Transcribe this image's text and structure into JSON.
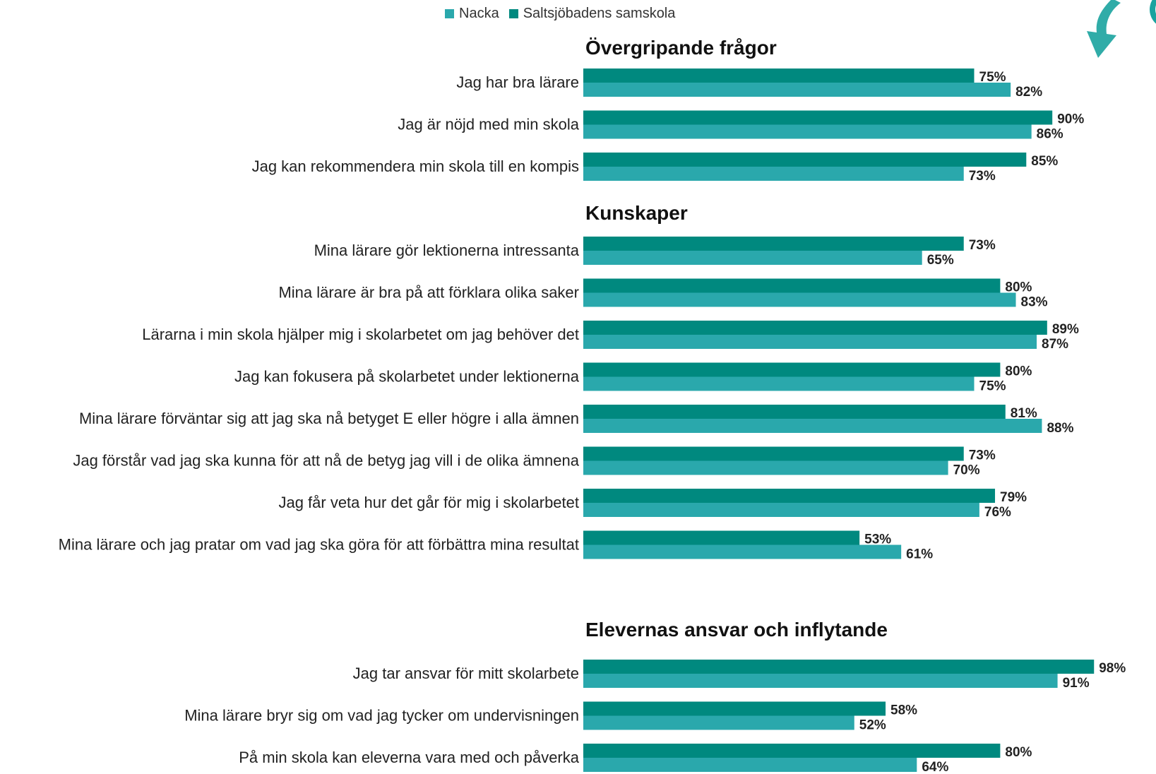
{
  "legend": {
    "items": [
      {
        "label": "Nacka",
        "color": "#2aa8ac"
      },
      {
        "label": "Saltsjöbadens samskola",
        "color": "#00897f"
      }
    ]
  },
  "decor": {
    "arrow_icon": "down-curved-arrow-icon",
    "arrow_color": "#1aa39f"
  },
  "chart_data": {
    "type": "bar",
    "orientation": "horizontal",
    "value_unit": "%",
    "xlim": [
      0,
      100
    ],
    "grid": false,
    "legend_position": "top",
    "series_names": [
      "Nacka",
      "Saltsjöbadens samskola"
    ],
    "groups": [
      {
        "title": "Övergripande frågor",
        "rows": [
          {
            "label": "Jag har bra lärare",
            "skola": 75,
            "nacka": 82
          },
          {
            "label": "Jag är nöjd med min skola",
            "skola": 90,
            "nacka": 86
          },
          {
            "label": "Jag kan rekommendera min skola till en kompis",
            "skola": 85,
            "nacka": 73
          }
        ]
      },
      {
        "title": "Kunskaper",
        "rows": [
          {
            "label": "Mina lärare gör lektionerna intressanta",
            "skola": 73,
            "nacka": 65
          },
          {
            "label": "Mina lärare är bra på att förklara olika saker",
            "skola": 80,
            "nacka": 83
          },
          {
            "label": "Lärarna i min skola hjälper mig i skolarbetet om jag behöver det",
            "skola": 89,
            "nacka": 87
          },
          {
            "label": "Jag kan fokusera på skolarbetet under lektionerna",
            "skola": 80,
            "nacka": 75
          },
          {
            "label": "Mina lärare förväntar sig att jag ska nå betyget E eller högre i alla ämnen",
            "skola": 81,
            "nacka": 88
          },
          {
            "label": "Jag förstår vad jag ska kunna för att nå de betyg jag vill i de olika ämnena",
            "skola": 73,
            "nacka": 70
          },
          {
            "label": "Jag får veta hur det går för mig i skolarbetet",
            "skola": 79,
            "nacka": 76
          },
          {
            "label": "Mina lärare och jag pratar om vad jag ska göra för att förbättra mina resultat",
            "skola": 53,
            "nacka": 61
          }
        ]
      },
      {
        "title": "Elevernas ansvar och inflytande",
        "rows": [
          {
            "label": "Jag tar ansvar för mitt skolarbete",
            "skola": 98,
            "nacka": 91
          },
          {
            "label": "Mina lärare bryr sig om vad jag tycker om undervisningen",
            "skola": 58,
            "nacka": 52
          },
          {
            "label": "På min skola kan eleverna vara med och påverka",
            "skola": 80,
            "nacka": 64
          }
        ]
      }
    ]
  }
}
